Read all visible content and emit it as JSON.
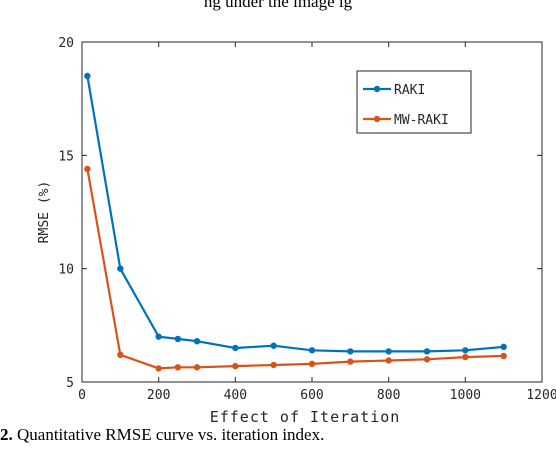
{
  "top_text_partial": "ng under the image ig",
  "caption": {
    "number": "2.",
    "text": "Quantitative RMSE curve vs. iteration index."
  },
  "chart_data": {
    "type": "line",
    "xlabel": "Effect of Iteration",
    "ylabel": "RMSE (%)",
    "xlim": [
      0,
      1200
    ],
    "ylim": [
      5,
      20
    ],
    "xticks": [
      0,
      200,
      400,
      600,
      800,
      1000,
      1200
    ],
    "yticks": [
      5,
      10,
      15,
      20
    ],
    "grid": false,
    "legend_position": "top-right",
    "series": [
      {
        "name": "RAKI",
        "color": "#0072BD",
        "x": [
          14,
          100,
          200,
          250,
          300,
          400,
          500,
          600,
          700,
          800,
          900,
          1000,
          1100
        ],
        "y": [
          18.5,
          10.0,
          7.0,
          6.9,
          6.8,
          6.5,
          6.6,
          6.4,
          6.35,
          6.35,
          6.35,
          6.4,
          6.55
        ]
      },
      {
        "name": "MW-RAKI",
        "color": "#D95319",
        "x": [
          14,
          100,
          200,
          250,
          300,
          400,
          500,
          600,
          700,
          800,
          900,
          1000,
          1100
        ],
        "y": [
          14.4,
          6.2,
          5.6,
          5.65,
          5.65,
          5.7,
          5.75,
          5.8,
          5.9,
          5.95,
          6.0,
          6.1,
          6.15
        ]
      }
    ]
  }
}
